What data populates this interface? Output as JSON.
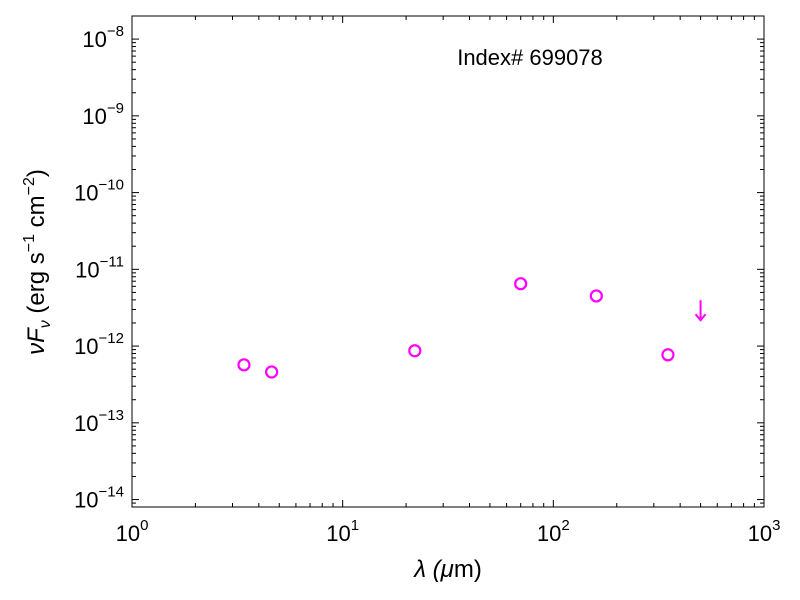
{
  "chart_data": {
    "type": "scatter",
    "title": "",
    "annotation": "Index# 699078",
    "xlabel": {
      "main": "λ (",
      "mu": "μ",
      "unit": "m)"
    },
    "ylabel": {
      "nu": "ν",
      "F": "F",
      "sub": "ν",
      "unit_open": " (erg s",
      "exp1": "−1",
      "unit_mid": " cm",
      "exp2": "−2",
      "unit_close": ")"
    },
    "x_scale": "log",
    "y_scale": "log",
    "xlim": [
      1,
      1000
    ],
    "ylim": [
      8e-15,
      2e-08
    ],
    "x_ticks": [
      {
        "value": 1,
        "base": "10",
        "exp": "0"
      },
      {
        "value": 10,
        "base": "10",
        "exp": "1"
      },
      {
        "value": 100,
        "base": "10",
        "exp": "2"
      },
      {
        "value": 1000,
        "base": "10",
        "exp": "3"
      }
    ],
    "y_ticks": [
      {
        "value": 1e-14,
        "base": "10",
        "exp": "−14"
      },
      {
        "value": 1e-13,
        "base": "10",
        "exp": "−13"
      },
      {
        "value": 1e-12,
        "base": "10",
        "exp": "−12"
      },
      {
        "value": 1e-11,
        "base": "10",
        "exp": "−11"
      },
      {
        "value": 1e-10,
        "base": "10",
        "exp": "−10"
      },
      {
        "value": 1e-09,
        "base": "10",
        "exp": "−9"
      },
      {
        "value": 1e-08,
        "base": "10",
        "exp": "−8"
      }
    ],
    "color": "#ff00ff",
    "series": [
      {
        "marker": "open-circle",
        "points": [
          {
            "x": 3.4,
            "y": 5.7e-13
          },
          {
            "x": 4.6,
            "y": 4.6e-13
          },
          {
            "x": 22,
            "y": 8.7e-13
          },
          {
            "x": 70,
            "y": 6.5e-12
          },
          {
            "x": 160,
            "y": 4.5e-12
          },
          {
            "x": 350,
            "y": 7.7e-13
          }
        ]
      },
      {
        "marker": "upper-limit-arrow",
        "points": [
          {
            "x": 500,
            "y": 2.6e-12
          }
        ]
      }
    ],
    "grid": false,
    "legend": "none"
  }
}
